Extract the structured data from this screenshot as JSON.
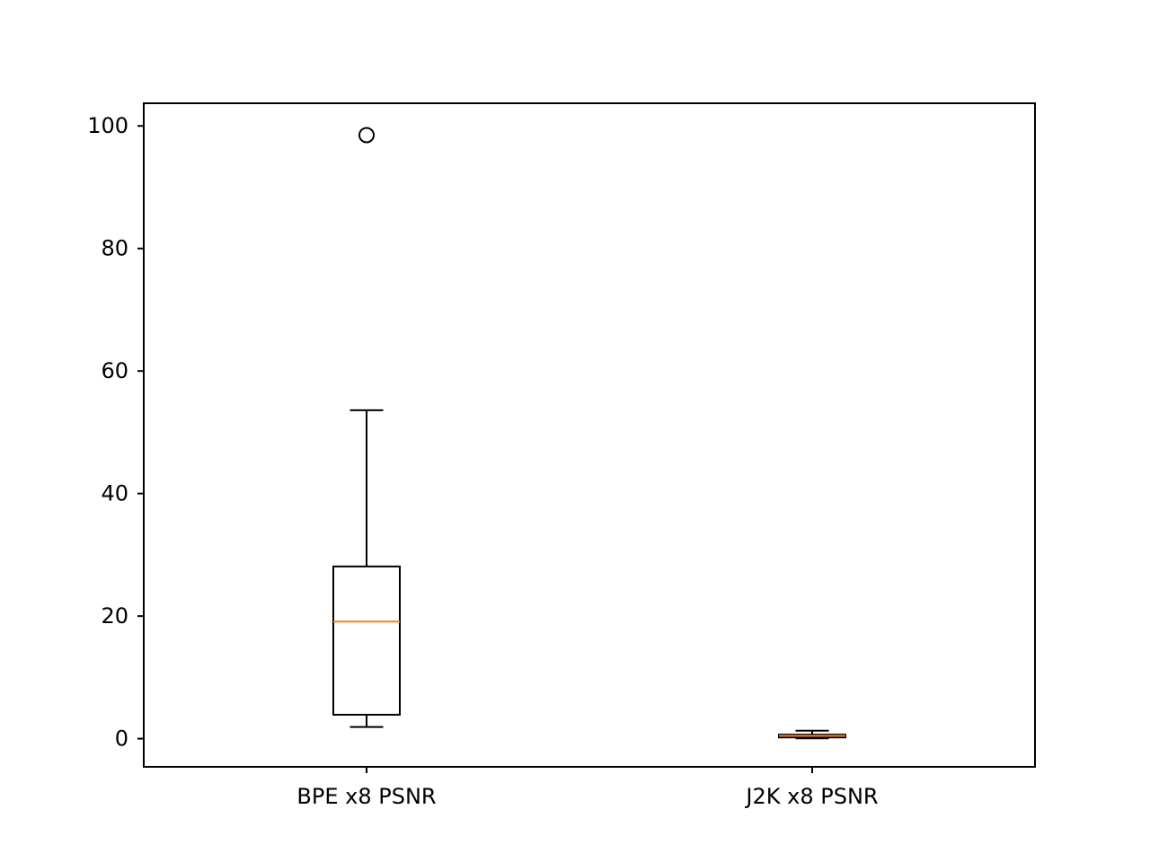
{
  "chart_data": {
    "type": "boxplot",
    "categories": [
      "BPE x8 PSNR",
      "J2K x8 PSNR"
    ],
    "boxes": [
      {
        "label": "BPE x8 PSNR",
        "whisker_low": 1.9,
        "q1": 3.9,
        "median": 19.1,
        "q3": 28.1,
        "whisker_high": 53.6,
        "outliers": [
          98.5
        ]
      },
      {
        "label": "J2K x8 PSNR",
        "whisker_low": 0.05,
        "q1": 0.2,
        "median": 0.45,
        "q3": 0.65,
        "whisker_high": 1.3,
        "outliers": []
      }
    ],
    "yticks": [
      0,
      20,
      40,
      60,
      80,
      100
    ],
    "ylim": [
      -4.6,
      103.7
    ],
    "title": "",
    "xlabel": "",
    "ylabel": "",
    "grid": false,
    "colors": {
      "box": "#000000",
      "median": "#ff7f0e",
      "background": "#ffffff"
    }
  }
}
